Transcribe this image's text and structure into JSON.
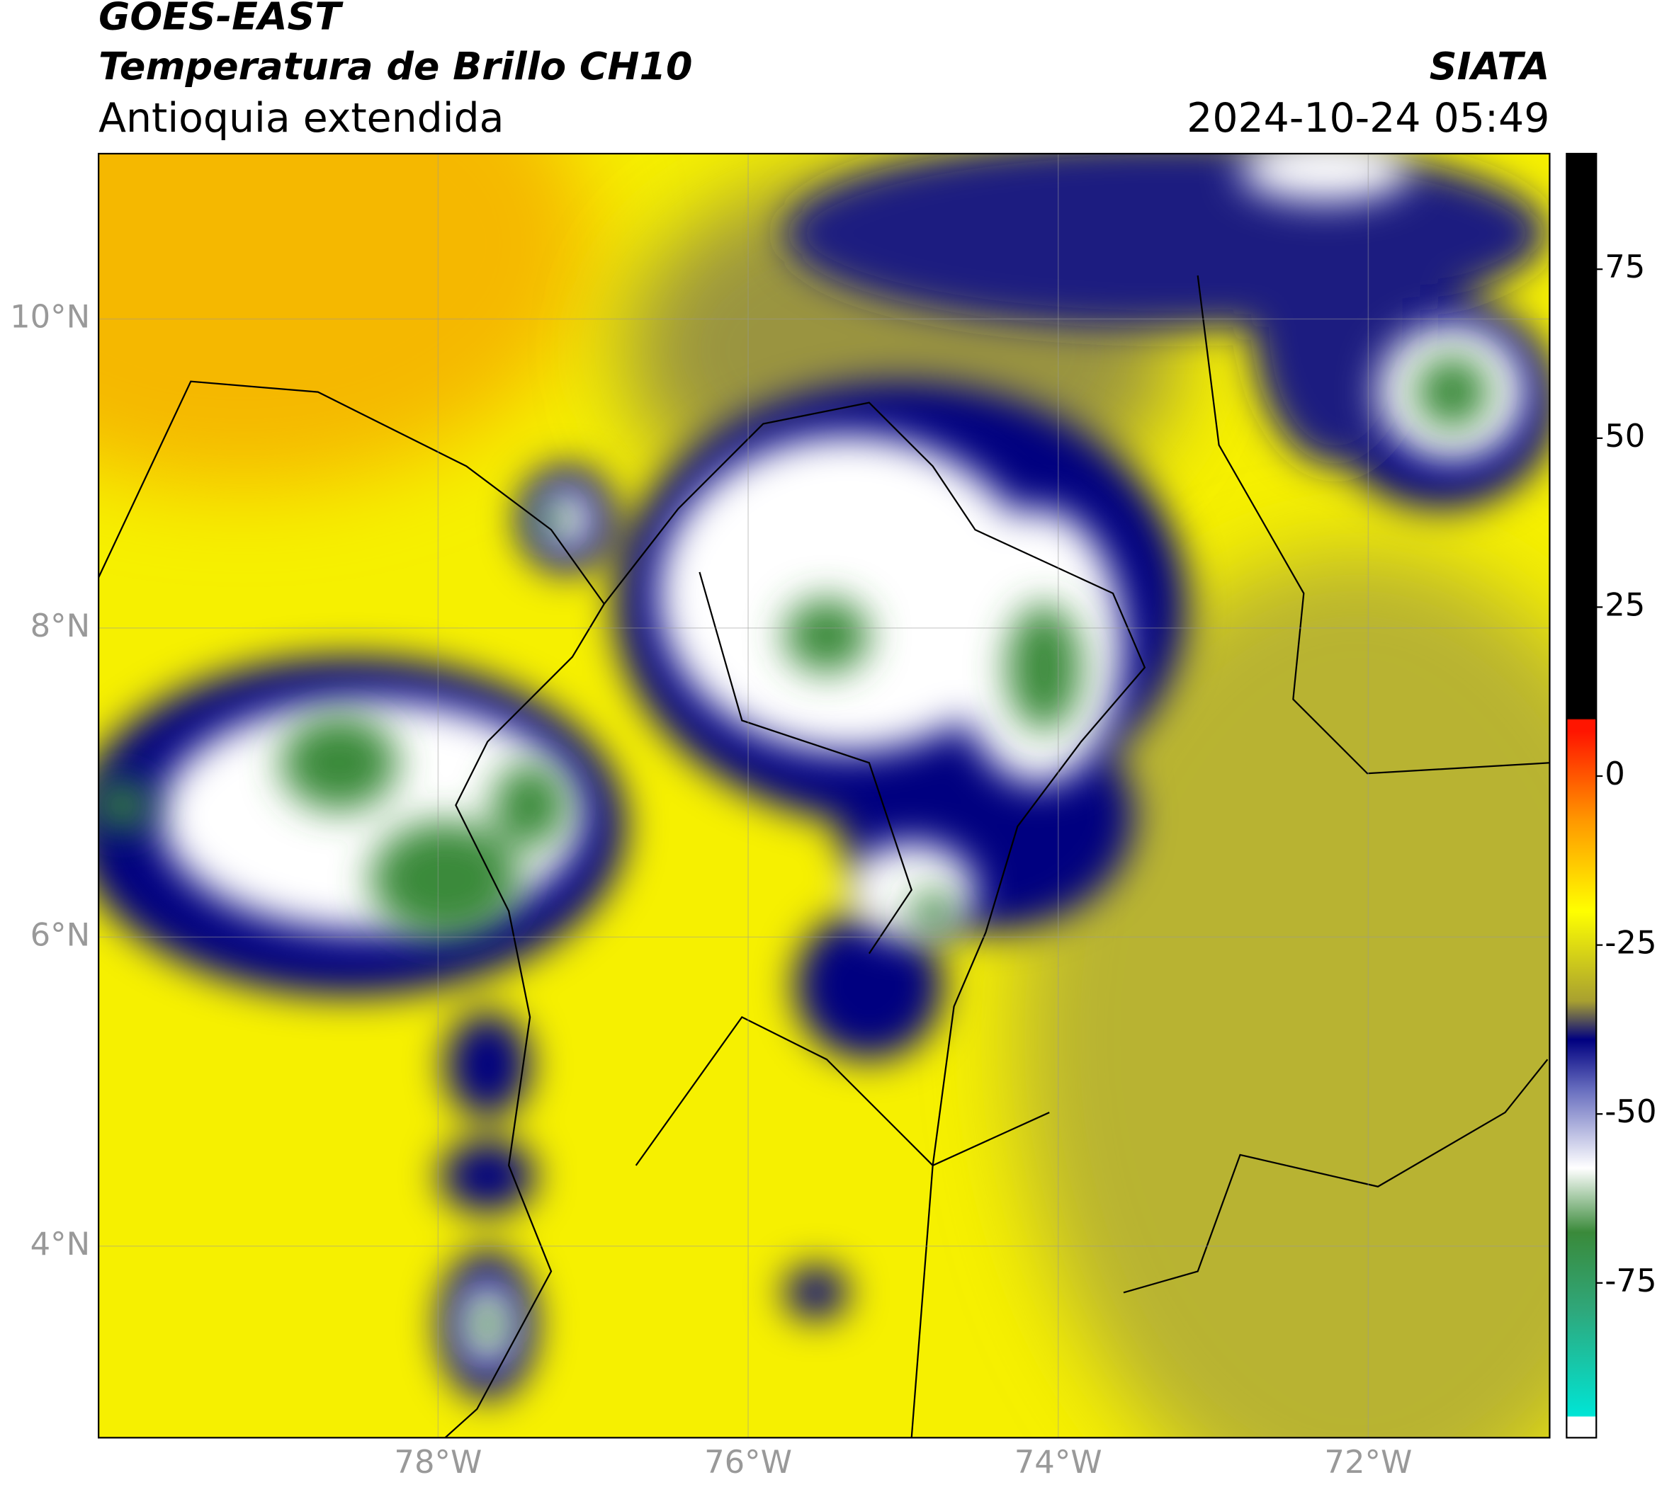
{
  "header": {
    "satellite": "GOES-EAST",
    "product": "Temperatura de Brillo CH10",
    "region": "Antioquia extendida",
    "organization": "SIATA",
    "datetime": "2024-10-24 05:49"
  },
  "map": {
    "xlim": [
      -80.19,
      -70.83
    ],
    "ylim": [
      2.76,
      11.07
    ],
    "xticks": [
      {
        "value": -78,
        "label": "78°W"
      },
      {
        "value": -76,
        "label": "76°W"
      },
      {
        "value": -74,
        "label": "74°W"
      },
      {
        "value": -72,
        "label": "72°W"
      }
    ],
    "yticks": [
      {
        "value": 4,
        "label": "4°N"
      },
      {
        "value": 6,
        "label": "6°N"
      },
      {
        "value": 8,
        "label": "8°N"
      },
      {
        "value": 10,
        "label": "10°N"
      }
    ],
    "grid": true
  },
  "colorbar": {
    "lim": [
      -97.9,
      92.1
    ],
    "ticks": [
      -75,
      -50,
      -25,
      0,
      25,
      50,
      75
    ]
  }
}
